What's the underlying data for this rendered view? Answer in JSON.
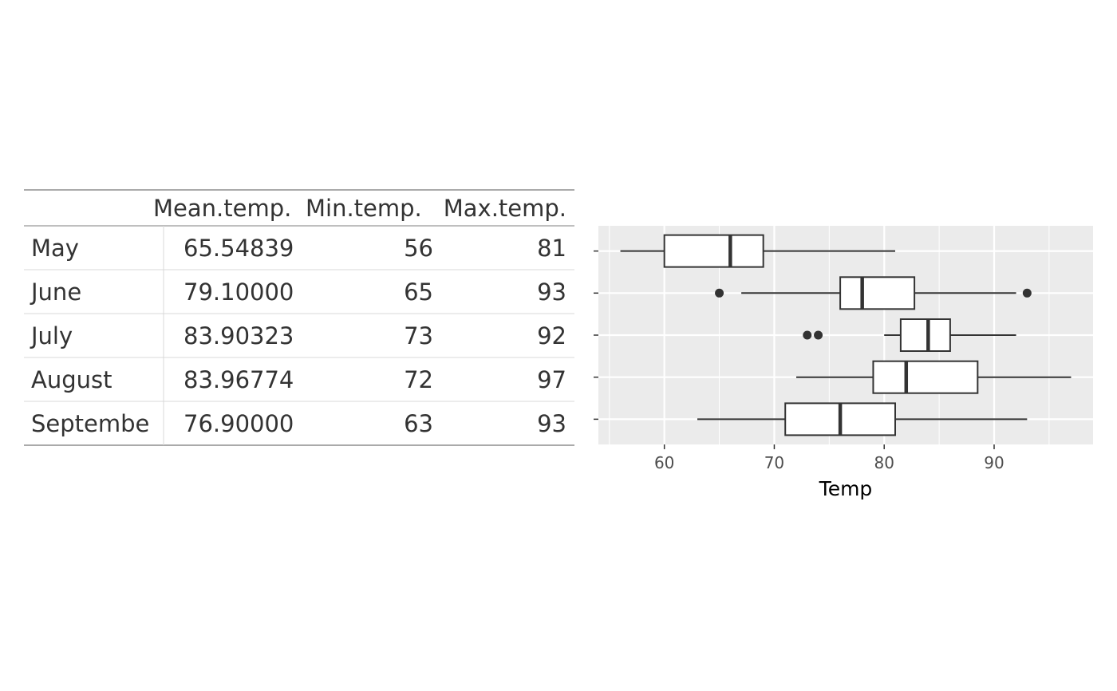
{
  "colors": {
    "panel_background": "#ebebeb",
    "grid_major": "#ffffff",
    "box_fill": "#ffffff",
    "box_line": "#333333",
    "table_rule": "#aaaaaa",
    "table_inner_rule": "#d9d9d9",
    "text": "#333333"
  },
  "table": {
    "columns": [
      "",
      "Mean.temp.",
      "Min.temp.",
      "Max.temp."
    ],
    "rows": [
      {
        "month": "May",
        "mean": "65.54839",
        "min": "56",
        "max": "81"
      },
      {
        "month": "June",
        "mean": "79.10000",
        "min": "65",
        "max": "93"
      },
      {
        "month": "July",
        "mean": "83.90323",
        "min": "73",
        "max": "92"
      },
      {
        "month": "August",
        "mean": "83.96774",
        "min": "72",
        "max": "97"
      },
      {
        "month": "Septembe",
        "mean": "76.90000",
        "min": "63",
        "max": "93"
      }
    ]
  },
  "chart_data": {
    "type": "boxplot",
    "orientation": "horizontal",
    "title": "",
    "xlabel": "Temp",
    "ylabel": "",
    "xlim": [
      54,
      99
    ],
    "x_ticks": [
      60,
      70,
      80,
      90
    ],
    "grid": true,
    "legend": "none",
    "boxes": [
      {
        "min": 56,
        "q1": 60,
        "median": 66,
        "q3": 69,
        "max": 81,
        "outliers": []
      },
      {
        "min": 67,
        "q1": 76,
        "median": 78,
        "q3": 82.75,
        "max": 92,
        "outliers": [
          65,
          93
        ]
      },
      {
        "min": 80,
        "q1": 81.5,
        "median": 84,
        "q3": 86,
        "max": 92,
        "outliers": [
          73,
          74
        ]
      },
      {
        "min": 72,
        "q1": 79,
        "median": 82,
        "q3": 88.5,
        "max": 97,
        "outliers": []
      },
      {
        "min": 63,
        "q1": 71,
        "median": 76,
        "q3": 81,
        "max": 93,
        "outliers": []
      }
    ]
  }
}
